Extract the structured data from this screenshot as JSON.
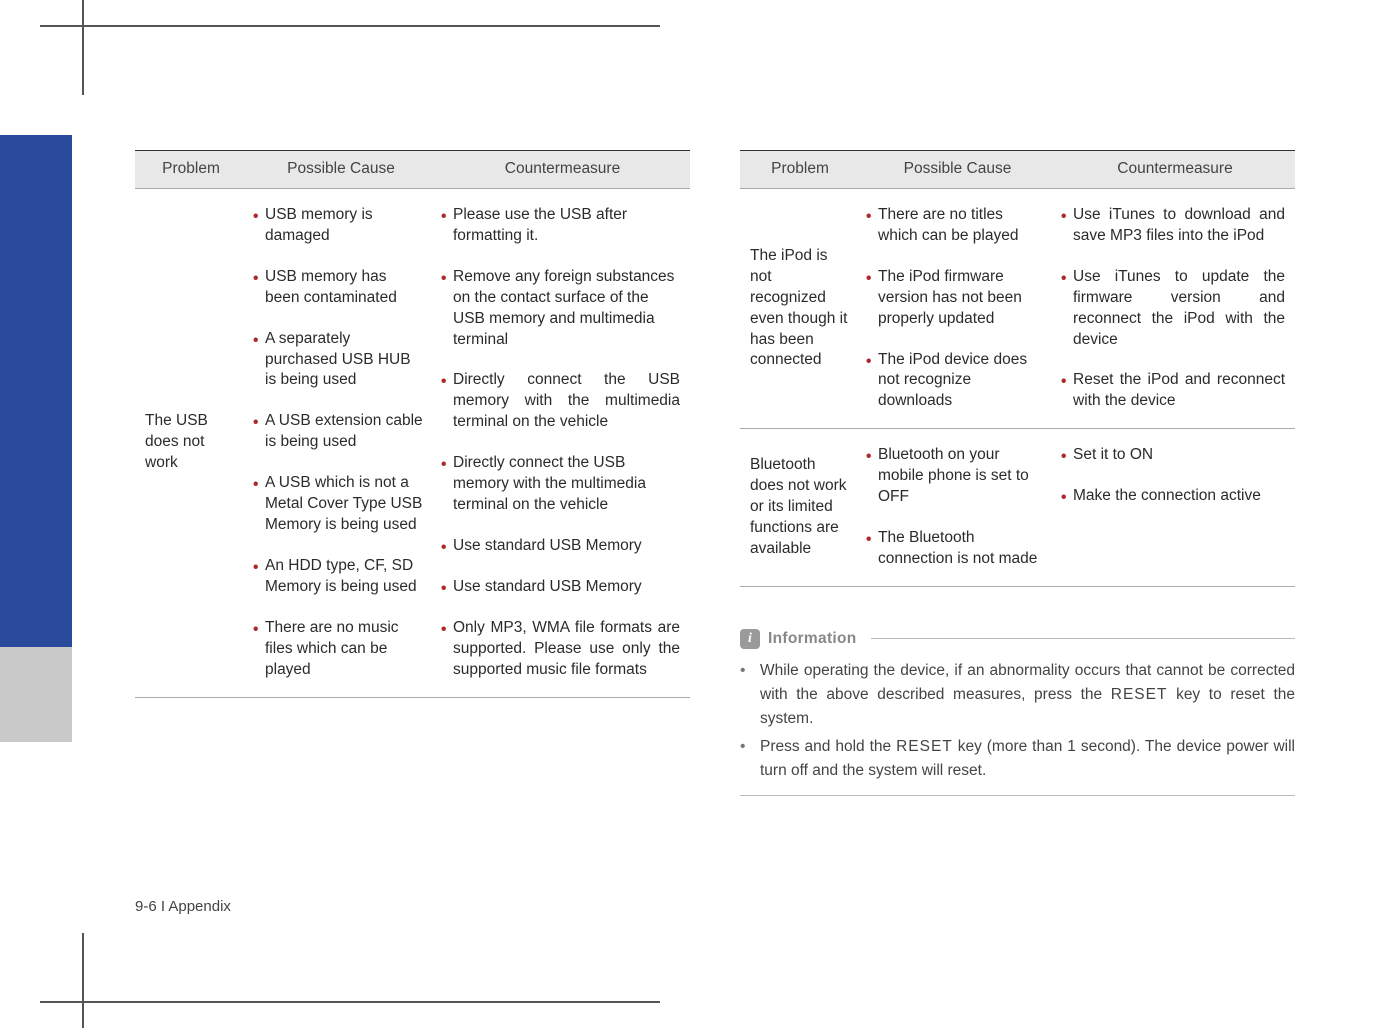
{
  "colors": {
    "blue_tab": "#2a4b9b",
    "gray_tab": "#c9c9c9",
    "bullet": "#b0282e",
    "header_bg": "#e8e8e8",
    "text": "#2b2b2b",
    "info_gray": "#888888",
    "rule": "#aaaaaa"
  },
  "headers": {
    "problem": "Problem",
    "cause": "Possible Cause",
    "counter": "Countermeasure"
  },
  "table1": {
    "problem": "The USB does not work",
    "rows": [
      {
        "cause": "USB memory is damaged",
        "counter": "Please use the USB after formatting it."
      },
      {
        "cause": "USB memory has been contaminated",
        "counter": "Remove any foreign substances on the contact surface of the USB memory and multimedia terminal"
      },
      {
        "cause": "A separately purchased USB HUB is being used",
        "counter": "Directly connect the USB memory with the multimedia terminal on the vehicle",
        "counter_justify": true
      },
      {
        "cause": "A USB extension cable is being used",
        "counter": "Directly connect the USB memory with the multimedia terminal on the vehicle"
      },
      {
        "cause": "A USB which is not a Metal Cover Type USB Memory is being used",
        "counter": "Use standard USB Memory"
      },
      {
        "cause": "An HDD type, CF, SD Memory is being used",
        "counter": "Use standard USB Memory"
      },
      {
        "cause": "There are no music files which can be played",
        "counter": "Only MP3, WMA file formats are supported. Please use only the supported music file formats",
        "counter_justify": true
      }
    ]
  },
  "table2": {
    "groups": [
      {
        "problem": "The iPod is not recognized even though it has been connected",
        "rows": [
          {
            "cause": "There are no titles which can be played",
            "counter": "Use iTunes to download and save MP3 files into the iPod",
            "counter_justify": true
          },
          {
            "cause": "The iPod firmware version has not been properly updated",
            "counter": "Use iTunes to update the firmware version and reconnect the iPod with the device",
            "counter_justify": true
          },
          {
            "cause": "The iPod device does not recognize downloads",
            "counter": "Reset the iPod and reconnect with the device",
            "counter_justify": true
          }
        ]
      },
      {
        "problem": "Bluetooth does not work or its limited functions are available",
        "rows": [
          {
            "cause": "Bluetooth on your mobile phone is set to OFF",
            "counter": "Set it to ON"
          },
          {
            "cause": "The Bluetooth connection is not made",
            "counter": "Make the connection active"
          }
        ]
      }
    ]
  },
  "info": {
    "title": "Information",
    "items": [
      {
        "pre": "While operating the device, if an abnormality occurs that cannot be corrected with the above described measures, press the ",
        "key": "RESET",
        "post": " key to reset the system."
      },
      {
        "pre": "Press and hold the ",
        "key": "RESET",
        "post": " key (more than 1 second). The device power will turn off and the system will reset."
      }
    ]
  },
  "footer": "9-6 I Appendix"
}
